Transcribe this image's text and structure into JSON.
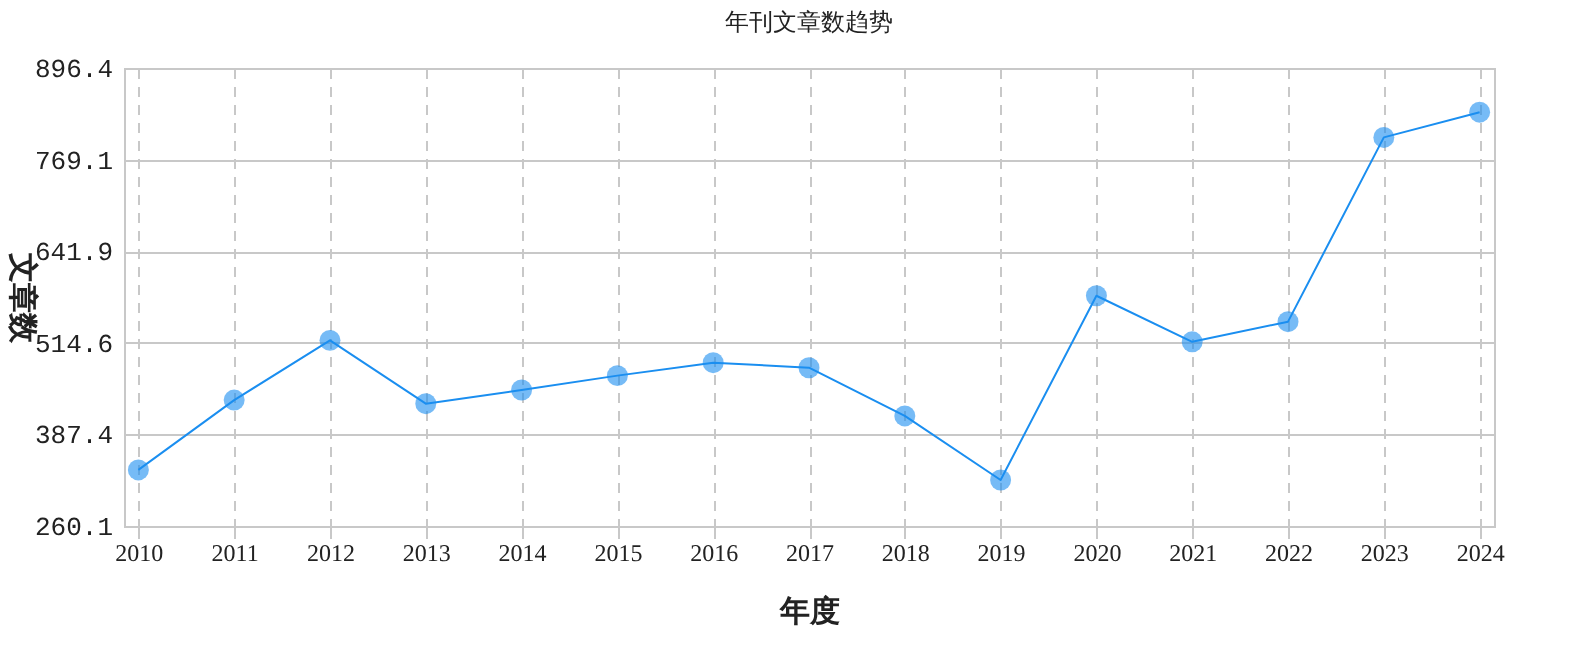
{
  "chart_data": {
    "type": "line",
    "title": "年刊文章数趋势",
    "xlabel": "年度",
    "ylabel": "文章数",
    "categories": [
      "2010",
      "2011",
      "2012",
      "2013",
      "2014",
      "2015",
      "2016",
      "2017",
      "2018",
      "2019",
      "2020",
      "2021",
      "2022",
      "2023",
      "2024"
    ],
    "series": [
      {
        "color": "#1a8ef0",
        "values": [
          338,
          435,
          518,
          430,
          449,
          469,
          487,
          480,
          413,
          324,
          580,
          516,
          544,
          800,
          835
        ]
      }
    ],
    "ylim": [
      260.1,
      896.4
    ],
    "yticks": [
      260.1,
      387.4,
      514.6,
      641.9,
      769.1,
      896.4
    ],
    "grid": true,
    "marker": "circle",
    "line_style": "solid"
  }
}
